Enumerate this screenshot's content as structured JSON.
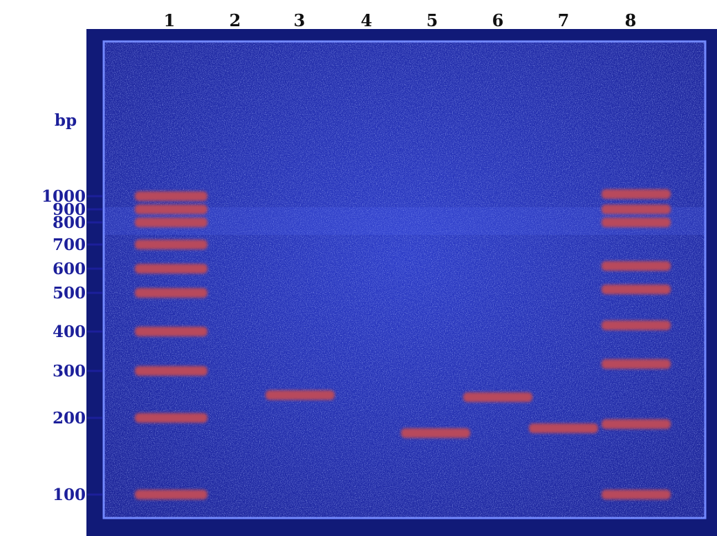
{
  "lane_labels": [
    "1",
    "2",
    "3",
    "4",
    "5",
    "6",
    "7",
    "8"
  ],
  "unit_label": "bp",
  "marker_labels": [
    1000,
    900,
    800,
    700,
    600,
    500,
    400,
    300,
    200,
    100
  ]
}
